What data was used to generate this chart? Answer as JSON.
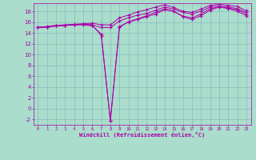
{
  "x": [
    0,
    1,
    2,
    3,
    4,
    5,
    6,
    7,
    8,
    9,
    10,
    11,
    12,
    13,
    14,
    15,
    16,
    17,
    18,
    19,
    20,
    21,
    22,
    23
  ],
  "line1": [
    15.0,
    15.1,
    15.3,
    15.4,
    15.5,
    15.6,
    15.5,
    15.0,
    15.0,
    16.2,
    16.8,
    17.3,
    17.6,
    18.2,
    18.8,
    18.4,
    17.8,
    17.5,
    18.0,
    18.8,
    19.0,
    18.8,
    18.5,
    17.8
  ],
  "line2": [
    15.0,
    15.1,
    15.3,
    15.4,
    15.5,
    15.6,
    15.5,
    13.5,
    -2.3,
    15.2,
    16.0,
    16.5,
    17.0,
    17.5,
    18.3,
    18.0,
    17.1,
    16.8,
    17.5,
    18.5,
    18.8,
    18.6,
    18.3,
    17.5
  ],
  "line3": [
    15.0,
    15.1,
    15.3,
    15.4,
    15.5,
    15.5,
    15.3,
    13.8,
    -2.3,
    15.0,
    16.1,
    16.6,
    17.2,
    17.8,
    18.5,
    18.0,
    17.0,
    16.5,
    17.2,
    18.2,
    18.8,
    18.5,
    18.0,
    17.2
  ],
  "line4": [
    15.0,
    15.2,
    15.4,
    15.5,
    15.6,
    15.7,
    15.8,
    15.5,
    15.5,
    16.8,
    17.3,
    17.9,
    18.3,
    18.8,
    19.2,
    18.7,
    18.0,
    17.8,
    18.4,
    19.1,
    19.3,
    19.1,
    18.9,
    18.1
  ],
  "line_color": "#AA00AA",
  "bg_color": "#AADDCC",
  "grid_color": "#88BBBB",
  "xlabel": "Windchill (Refroidissement éolien,°C)",
  "ylim": [
    -3,
    19.5
  ],
  "xlim": [
    -0.5,
    23.5
  ],
  "yticks": [
    -2,
    0,
    2,
    4,
    6,
    8,
    10,
    12,
    14,
    16,
    18
  ],
  "xticks": [
    0,
    1,
    2,
    3,
    4,
    5,
    6,
    7,
    8,
    9,
    10,
    11,
    12,
    13,
    14,
    15,
    16,
    17,
    18,
    19,
    20,
    21,
    22,
    23
  ]
}
